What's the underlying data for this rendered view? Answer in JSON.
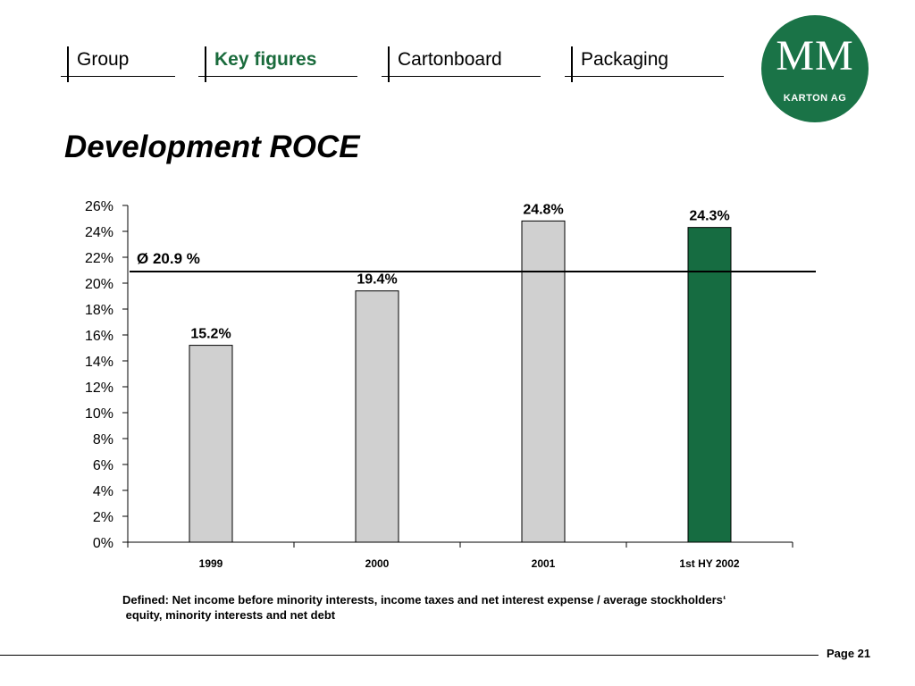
{
  "nav": {
    "tabs": [
      {
        "label": "Group",
        "active": false
      },
      {
        "label": "Key figures",
        "active": true
      },
      {
        "label": "Cartonboard",
        "active": false
      },
      {
        "label": "Packaging",
        "active": false
      }
    ]
  },
  "logo": {
    "mark": "MM",
    "subtitle": "KARTON AG"
  },
  "page_title": "Development ROCE",
  "chart_data": {
    "type": "bar",
    "categories": [
      "1999",
      "2000",
      "2001",
      "1st HY 2002"
    ],
    "values": [
      15.2,
      19.4,
      24.8,
      24.3
    ],
    "value_labels": [
      "15.2%",
      "19.4%",
      "24.8%",
      "24.3%"
    ],
    "bar_colors": [
      "#d0d0d0",
      "#d0d0d0",
      "#d0d0d0",
      "#166c41"
    ],
    "ylim": [
      0,
      26
    ],
    "yticks": [
      0,
      2,
      4,
      6,
      8,
      10,
      12,
      14,
      16,
      18,
      20,
      22,
      24,
      26
    ],
    "ytick_labels": [
      "0%",
      "2%",
      "4%",
      "6%",
      "8%",
      "10%",
      "12%",
      "14%",
      "16%",
      "18%",
      "20%",
      "22%",
      "24%",
      "26%"
    ],
    "average": {
      "value": 20.9,
      "label": "Ø 20.9 %"
    },
    "grid": false,
    "legend": "none"
  },
  "footnote": {
    "line1": "Defined: Net income before minority interests, income taxes and net interest expense / average stockholders‘",
    "line2": " equity, minority interests and net debt"
  },
  "footer": {
    "page": "Page 21"
  }
}
